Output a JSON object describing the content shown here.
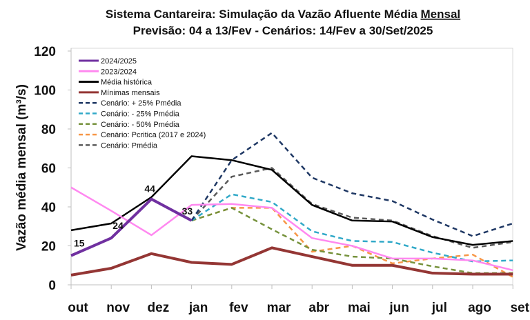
{
  "chart_data": {
    "type": "line",
    "title": "Sistema Cantareira: Simulação da Vazão Afluente Média Mensal",
    "title_underlined_word": "Mensal",
    "subtitle": "Previsão: 04 a 13/Fev - Cenários: 14/Fev a 30/Set/2025",
    "xlabel": "",
    "ylabel": "Vazão média mensal (m³/s)",
    "ylim": [
      0,
      120
    ],
    "yticks": [
      0,
      20,
      40,
      60,
      80,
      100,
      120
    ],
    "grid": false,
    "legend_position": "top-left",
    "categories": [
      "out",
      "nov",
      "dez",
      "jan",
      "fev",
      "mar",
      "abr",
      "mai",
      "jun",
      "jul",
      "ago",
      "set"
    ],
    "series": [
      {
        "name": "2024/2025",
        "color": "#7030A0",
        "dash": false,
        "width": 4,
        "values": [
          15,
          24,
          44,
          33,
          null,
          null,
          null,
          null,
          null,
          null,
          null,
          null
        ],
        "data_labels": [
          "15",
          "24",
          "44",
          "33"
        ]
      },
      {
        "name": "2023/2024",
        "color": "#FF88F0",
        "dash": false,
        "width": 2.5,
        "values": [
          50,
          38,
          25.5,
          41,
          41.5,
          39.5,
          24,
          20,
          13.5,
          13.5,
          12.5,
          7.5
        ]
      },
      {
        "name": "Média histórica",
        "color": "#000000",
        "dash": false,
        "width": 2.5,
        "values": [
          28,
          31.5,
          45,
          66,
          64,
          59,
          41,
          33,
          32.5,
          24.5,
          20.5,
          22.5
        ]
      },
      {
        "name": "Mínimas mensais",
        "color": "#943634",
        "dash": false,
        "width": 4,
        "values": [
          5,
          8.5,
          16,
          11.5,
          10.5,
          19,
          14.5,
          10,
          10,
          6,
          5.5,
          5.5
        ]
      },
      {
        "name": "Cenário: + 25% Pmédia",
        "color": "#1F3864",
        "dash": true,
        "width": 2.5,
        "values": [
          null,
          null,
          null,
          33,
          64,
          78,
          55,
          47,
          43,
          33.5,
          25,
          31.5
        ]
      },
      {
        "name": "Cenário: - 25% Pmédia",
        "color": "#31A9C8",
        "dash": true,
        "width": 2.5,
        "values": [
          null,
          null,
          null,
          33,
          46.5,
          42.5,
          27.5,
          22.5,
          22,
          16.5,
          12,
          12.5
        ]
      },
      {
        "name": "Cenário: - 50% Pmédia",
        "color": "#76923C",
        "dash": true,
        "width": 2.5,
        "values": [
          null,
          null,
          null,
          33,
          39.5,
          28.5,
          18,
          14.5,
          13.5,
          9.5,
          6,
          6
        ]
      },
      {
        "name": "Cenário: Pcritica (2017 e 2024)",
        "color": "#F79646",
        "dash": true,
        "width": 2.5,
        "values": [
          null,
          null,
          null,
          33,
          39.5,
          39.5,
          17,
          20,
          11,
          13.5,
          15.5,
          4
        ]
      },
      {
        "name": "Cenário: Pmédia",
        "color": "#595959",
        "dash": true,
        "width": 2.5,
        "values": [
          null,
          null,
          null,
          33,
          55.5,
          60,
          41.5,
          34.5,
          33,
          25,
          19,
          22
        ]
      }
    ]
  }
}
